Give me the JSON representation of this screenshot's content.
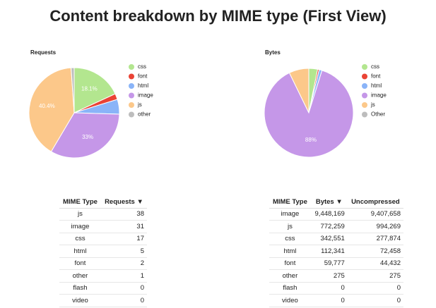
{
  "title": "Content breakdown by MIME type (First View)",
  "chart_data": [
    {
      "type": "pie",
      "title": "Requests",
      "categories": [
        "css",
        "font",
        "html",
        "image",
        "js",
        "other"
      ],
      "values": [
        18.1,
        2.1,
        5.3,
        33,
        40.4,
        1.1
      ],
      "value_labels": [
        "18.1%",
        null,
        null,
        "33%",
        "40.4%",
        null
      ],
      "colors": [
        "#b3e68f",
        "#ea4335",
        "#8ab4f8",
        "#c597e8",
        "#fcc88a",
        "#bdbdbd"
      ],
      "legend": "right"
    },
    {
      "type": "pie",
      "title": "Bytes",
      "categories": [
        "css",
        "font",
        "html",
        "image",
        "js",
        "Other"
      ],
      "values": [
        3.19,
        0.56,
        1.05,
        88,
        7.19,
        0.003
      ],
      "value_labels": [
        null,
        null,
        null,
        "88%",
        null,
        null
      ],
      "colors": [
        "#b3e68f",
        "#ea4335",
        "#8ab4f8",
        "#c597e8",
        "#fcc88a",
        "#bdbdbd"
      ],
      "legend": "right"
    }
  ],
  "tables": [
    {
      "headers": [
        "MIME Type",
        "Requests ▼"
      ],
      "rows": [
        [
          "js",
          "38"
        ],
        [
          "image",
          "31"
        ],
        [
          "css",
          "17"
        ],
        [
          "html",
          "5"
        ],
        [
          "font",
          "2"
        ],
        [
          "other",
          "1"
        ],
        [
          "flash",
          "0"
        ],
        [
          "video",
          "0"
        ]
      ]
    },
    {
      "headers": [
        "MIME Type",
        "Bytes ▼",
        "Uncompressed"
      ],
      "rows": [
        [
          "image",
          "9,448,169",
          "9,407,658"
        ],
        [
          "js",
          "772,259",
          "994,269"
        ],
        [
          "css",
          "342,551",
          "277,874"
        ],
        [
          "html",
          "112,341",
          "72,458"
        ],
        [
          "font",
          "59,777",
          "44,432"
        ],
        [
          "other",
          "275",
          "275"
        ],
        [
          "flash",
          "0",
          "0"
        ],
        [
          "video",
          "0",
          "0"
        ]
      ]
    }
  ]
}
